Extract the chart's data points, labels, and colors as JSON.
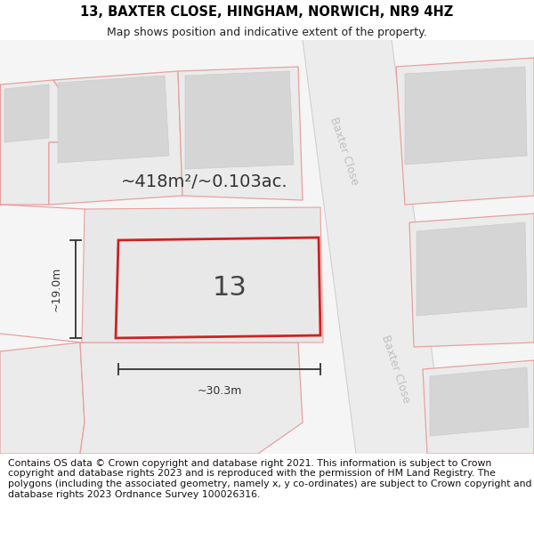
{
  "title": "13, BAXTER CLOSE, HINGHAM, NORWICH, NR9 4HZ",
  "subtitle": "Map shows position and indicative extent of the property.",
  "area_text": "~418m²/~0.103ac.",
  "number_label": "13",
  "width_label": "~30.3m",
  "height_label": "~19.0m",
  "street_label": "Baxter Close",
  "footer_text": "Contains OS data © Crown copyright and database right 2021. This information is subject to Crown copyright and database rights 2023 and is reproduced with the permission of HM Land Registry. The polygons (including the associated geometry, namely x, y co-ordinates) are subject to Crown copyright and database rights 2023 Ordnance Survey 100026316.",
  "bg_color": "#f7f7f7",
  "plot_edge": "#e06060",
  "building_fill": "#d8d8d8",
  "street_label_color": "#c0c0c0",
  "title_fontsize": 10.5,
  "subtitle_fontsize": 9,
  "footer_fontsize": 7.8,
  "area_fontsize": 14,
  "dim_fontsize": 9,
  "number_fontsize": 22
}
